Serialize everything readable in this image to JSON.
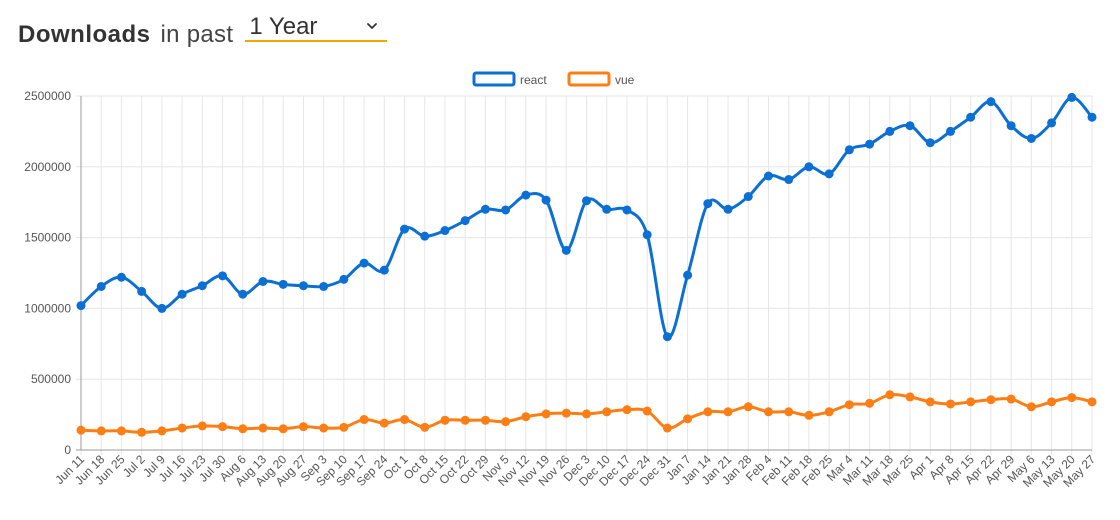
{
  "header": {
    "title_strong": "Downloads",
    "title_mid": "in past",
    "period_value": "1 Year",
    "period_accent": "#f0a500",
    "chevron_icon": "chevron-down-icon"
  },
  "chart_data": {
    "type": "line",
    "categories": [
      "Jun 11",
      "Jun 18",
      "Jun 25",
      "Jul 2",
      "Jul 9",
      "Jul 16",
      "Jul 23",
      "Jul 30",
      "Aug 6",
      "Aug 13",
      "Aug 20",
      "Aug 27",
      "Sep 3",
      "Sep 10",
      "Sep 17",
      "Sep 24",
      "Oct 1",
      "Oct 8",
      "Oct 15",
      "Oct 22",
      "Oct 29",
      "Nov 5",
      "Nov 12",
      "Nov 19",
      "Nov 26",
      "Dec 3",
      "Dec 10",
      "Dec 17",
      "Dec 24",
      "Dec 31",
      "Jan 7",
      "Jan 14",
      "Jan 21",
      "Jan 28",
      "Feb 4",
      "Feb 11",
      "Feb 18",
      "Feb 25",
      "Mar 4",
      "Mar 11",
      "Mar 18",
      "Mar 25",
      "Apr 1",
      "Apr 8",
      "Apr 15",
      "Apr 22",
      "Apr 29",
      "May 6",
      "May 13",
      "May 20",
      "May 27"
    ],
    "series": [
      {
        "name": "react",
        "color": "#0b6fd4",
        "values": [
          1020000,
          1155000,
          1220000,
          1120000,
          1000000,
          1100000,
          1160000,
          1230000,
          1100000,
          1190000,
          1170000,
          1160000,
          1155000,
          1205000,
          1320000,
          1270000,
          1560000,
          1510000,
          1550000,
          1620000,
          1700000,
          1695000,
          1800000,
          1765000,
          1410000,
          1760000,
          1700000,
          1695000,
          1520000,
          800000,
          1235000,
          1740000,
          1700000,
          1790000,
          1935000,
          1910000,
          2000000,
          1950000,
          2120000,
          2160000,
          2250000,
          2290000,
          2170000,
          2250000,
          2350000,
          2460000,
          2290000,
          2200000,
          2310000,
          2490000,
          2350000
        ]
      },
      {
        "name": "vue",
        "color": "#fd7e14",
        "values": [
          140000,
          135000,
          135000,
          125000,
          135000,
          155000,
          170000,
          165000,
          150000,
          155000,
          150000,
          165000,
          155000,
          160000,
          215000,
          190000,
          215000,
          160000,
          210000,
          210000,
          210000,
          200000,
          235000,
          255000,
          260000,
          255000,
          270000,
          285000,
          275000,
          155000,
          220000,
          270000,
          270000,
          305000,
          270000,
          270000,
          245000,
          270000,
          320000,
          330000,
          390000,
          375000,
          340000,
          325000,
          340000,
          355000,
          360000,
          305000,
          340000,
          370000,
          340000
        ]
      }
    ],
    "ylim": [
      0,
      2500000
    ],
    "yticks": [
      "0",
      "500000",
      "1000000",
      "1500000",
      "2000000",
      "2500000"
    ],
    "grid": true,
    "legend": "top"
  }
}
